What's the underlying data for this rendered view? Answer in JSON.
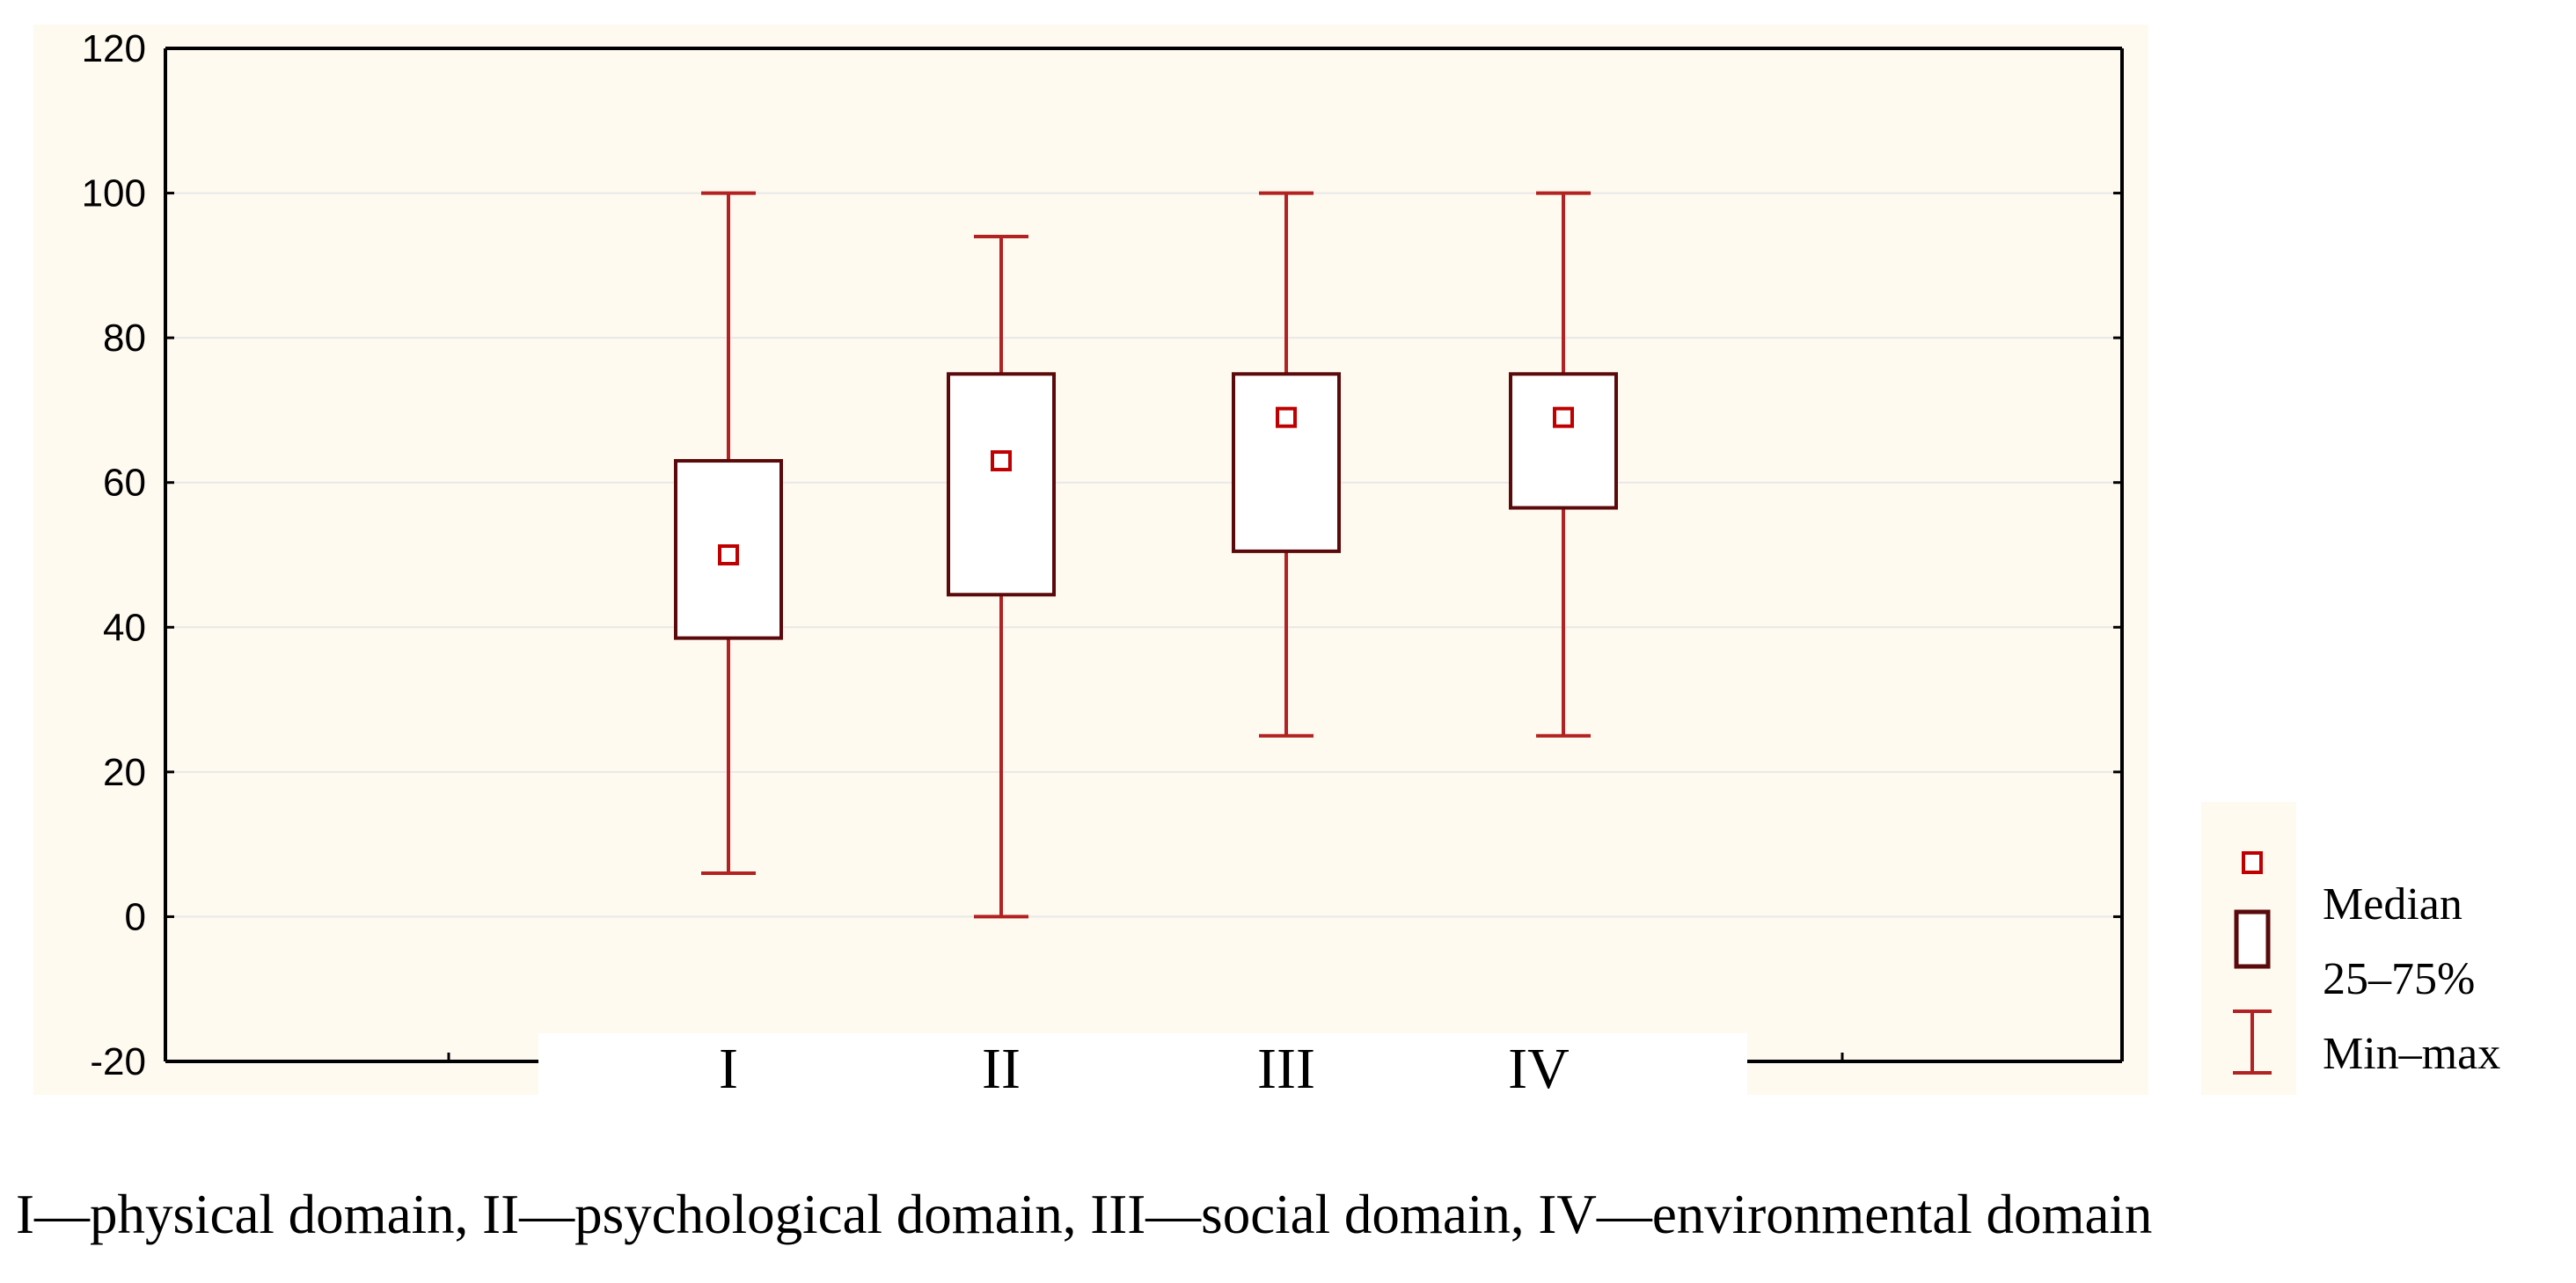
{
  "chart_data": {
    "type": "boxplot",
    "title": "",
    "xlabel": "",
    "ylabel": "",
    "ylim": [
      -20,
      120
    ],
    "yticks": [
      "-20",
      "0",
      "20",
      "40",
      "60",
      "80",
      "100",
      "120"
    ],
    "grid": true,
    "categories": [
      "I",
      "II",
      "III",
      "IV"
    ],
    "boxes": [
      {
        "category": "I",
        "min": 6,
        "q1": 38.5,
        "median": 50,
        "q3": 63,
        "max": 100
      },
      {
        "category": "II",
        "min": 0,
        "q1": 44.5,
        "median": 63,
        "q3": 75,
        "max": 94
      },
      {
        "category": "III",
        "min": 25,
        "q1": 50.5,
        "median": 69,
        "q3": 75,
        "max": 100
      },
      {
        "category": "IV",
        "min": 25,
        "q1": 56.5,
        "median": 69,
        "q3": 75,
        "max": 100
      }
    ],
    "legend": {
      "position": "right",
      "items": [
        {
          "label": "Median",
          "marker": "small-square"
        },
        {
          "label": "25–75%",
          "marker": "box"
        },
        {
          "label": "Min–max",
          "marker": "whisker"
        }
      ]
    }
  },
  "caption": "I—physical domain, II—psychological domain, III—social domain, IV—environmental domain",
  "colors": {
    "whisker": "#b22222",
    "box": "#5a0a0a",
    "median": "#c00000",
    "grid": "#e8e8e8",
    "plot_bg": "#fffaf0",
    "axis": "#000000"
  }
}
